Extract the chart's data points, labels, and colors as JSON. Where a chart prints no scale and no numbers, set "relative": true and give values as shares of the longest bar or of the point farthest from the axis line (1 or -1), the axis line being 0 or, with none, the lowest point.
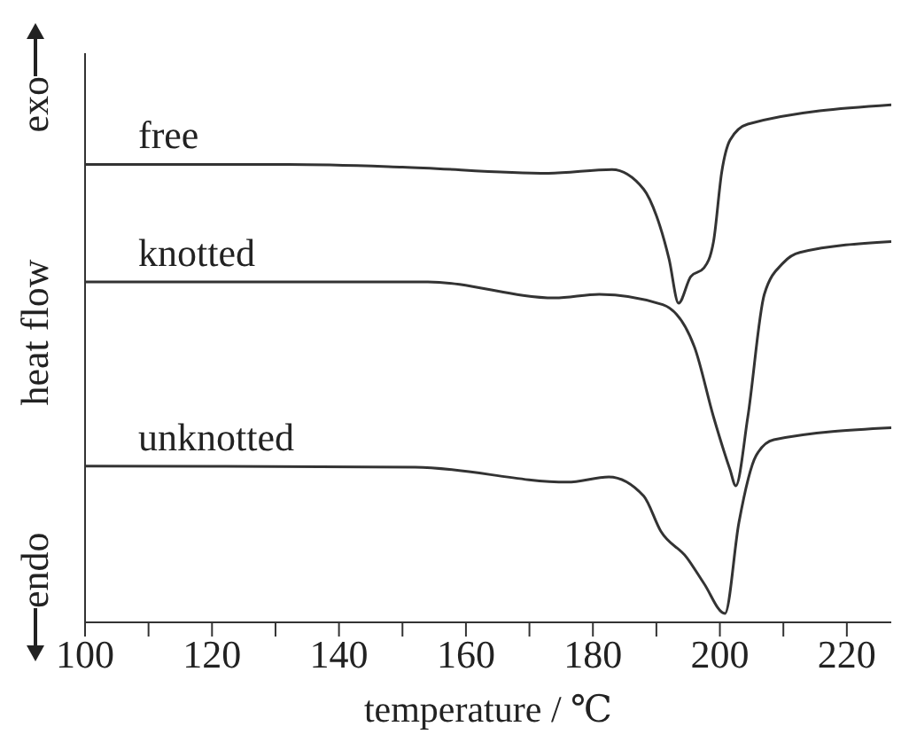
{
  "chart_data": {
    "type": "line",
    "relative": true,
    "xlabel": "temperature / ℃",
    "ylabel": "heat flow",
    "annotations": [
      "exo",
      "endo"
    ],
    "xlim": [
      100,
      227
    ],
    "xticks": [
      100,
      {
        "value": 110,
        "label": null
      },
      120,
      {
        "value": 130,
        "label": null
      },
      140,
      {
        "value": 150,
        "label": null
      },
      160,
      {
        "value": 170,
        "label": null
      },
      180,
      {
        "value": 190,
        "label": null
      },
      200,
      {
        "value": 210,
        "label": null
      },
      220
    ],
    "marker": "none",
    "line_style": "solid",
    "series": [
      {
        "name": "free",
        "color": "#333333",
        "x": [
          100,
          132,
          150,
          173,
          183,
          188,
          190,
          192,
          193.5,
          195.4,
          197.5,
          199,
          200.3,
          201.6,
          204.4,
          227
        ],
        "values": [
          0.885,
          0.885,
          0.88,
          0.868,
          0.875,
          0.837,
          0.786,
          0.702,
          0.617,
          0.668,
          0.685,
          0.736,
          0.871,
          0.932,
          0.963,
          1
        ]
      },
      {
        "name": "knotted",
        "color": "#333333",
        "x": [
          100,
          154,
          174,
          181,
          191,
          196,
          199,
          201.6,
          202.5,
          204.4,
          207,
          210,
          212.6,
          227
        ],
        "values": [
          0.658,
          0.658,
          0.627,
          0.634,
          0.614,
          0.532,
          0.397,
          0.295,
          0.264,
          0.397,
          0.634,
          0.695,
          0.715,
          0.736
        ]
      },
      {
        "name": "unknotted",
        "color": "#333333",
        "x": [
          100,
          152,
          176,
          182.5,
          188,
          190.7,
          194.8,
          197.5,
          200.8,
          203,
          205.7,
          208.5,
          227
        ],
        "values": [
          0.302,
          0.3,
          0.271,
          0.281,
          0.244,
          0.176,
          0.125,
          0.075,
          0.017,
          0.193,
          0.322,
          0.353,
          0.376
        ]
      }
    ]
  }
}
